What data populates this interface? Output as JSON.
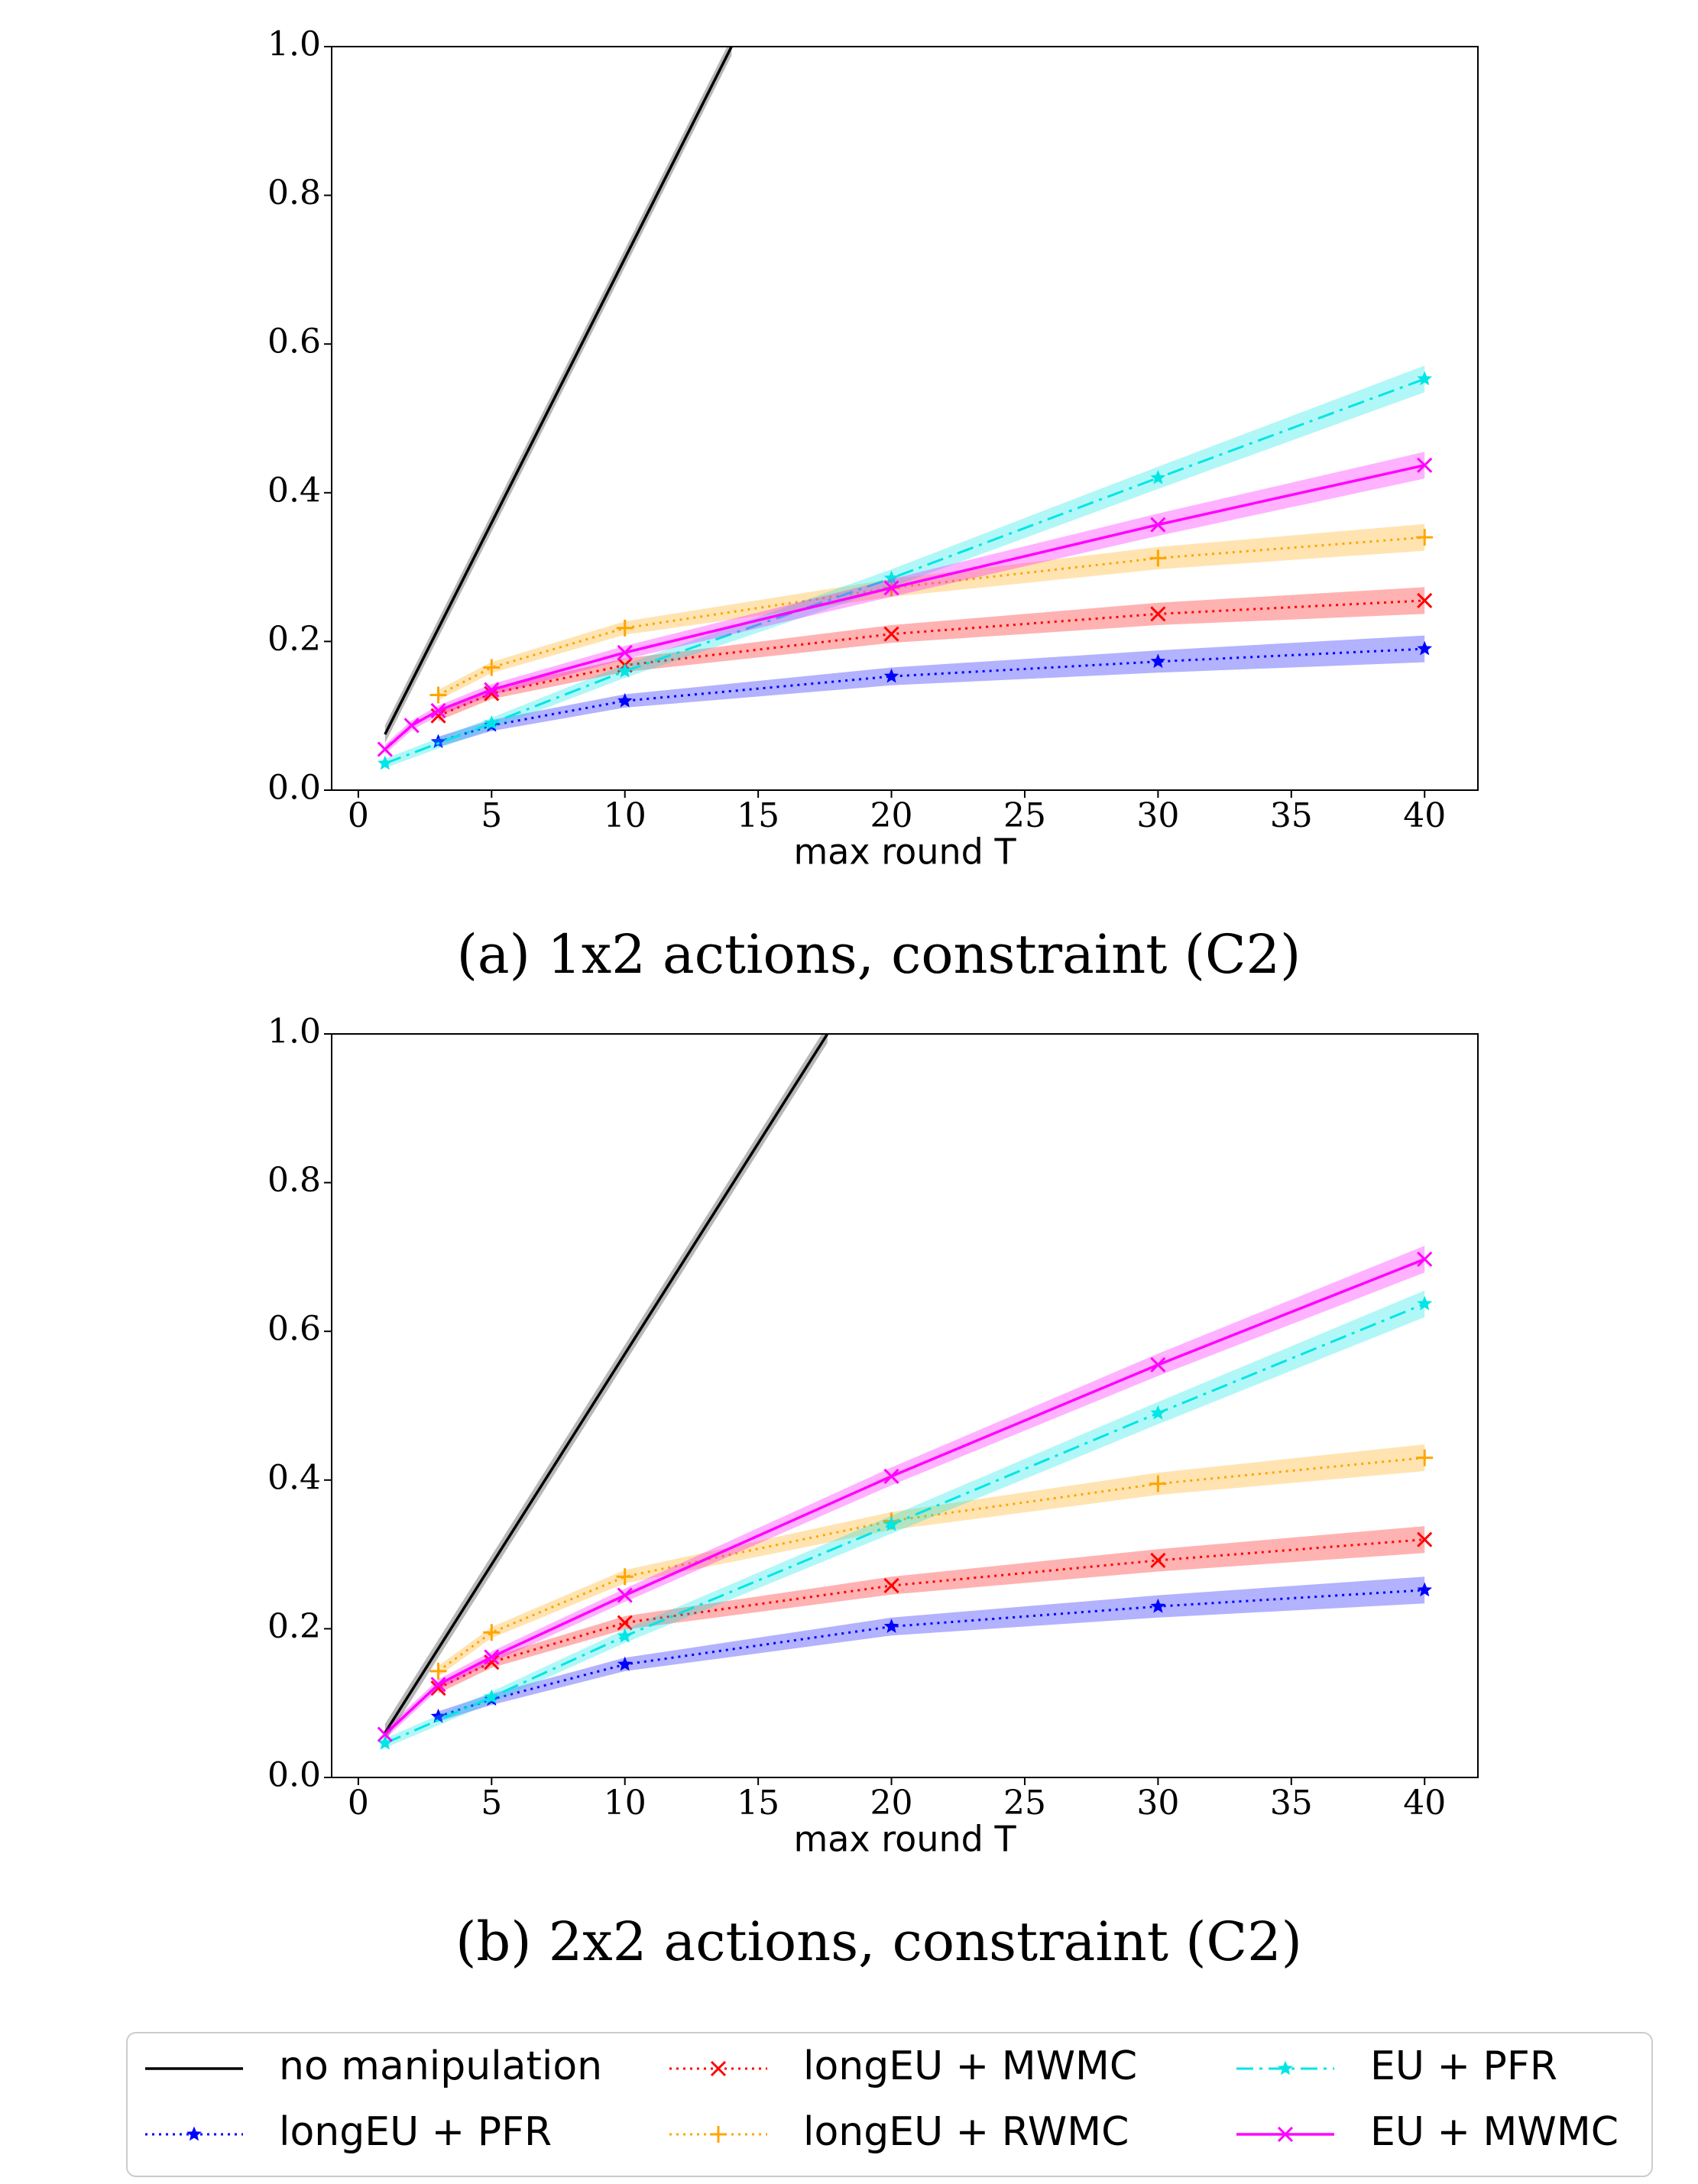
{
  "shared": {
    "xlabel": "max round T",
    "xticks": [
      0,
      5,
      10,
      15,
      20,
      25,
      30,
      35,
      40
    ],
    "yticks": [
      0.0,
      0.2,
      0.4,
      0.6,
      0.8,
      1.0
    ],
    "xlim": [
      -1,
      42
    ],
    "ylim": [
      0,
      1
    ]
  },
  "chart_data": [
    {
      "type": "line",
      "caption": "(a) 1x2 actions, constraint (C2)",
      "xlabel": "max round T",
      "xlim": [
        -1,
        42
      ],
      "ylim": [
        0,
        1
      ],
      "grid": false,
      "series": [
        {
          "key": "no_manipulation",
          "name": "no manipulation",
          "color": "#000000",
          "dash": "solid",
          "marker": "none",
          "x": [
            1,
            14
          ],
          "y": [
            0.075,
            1.0
          ]
        },
        {
          "key": "longEU_PFR",
          "name": "longEU + PFR",
          "color": "#0000ff",
          "dash": "dotted",
          "marker": "star",
          "x": [
            3,
            5,
            10,
            20,
            30,
            40
          ],
          "y": [
            0.065,
            0.087,
            0.12,
            0.153,
            0.173,
            0.19
          ]
        },
        {
          "key": "longEU_MWMC",
          "name": "longEU + MWMC",
          "color": "#ff0000",
          "dash": "dotted",
          "marker": "x",
          "x": [
            3,
            5,
            10,
            20,
            30,
            40
          ],
          "y": [
            0.1,
            0.13,
            0.168,
            0.21,
            0.237,
            0.255
          ]
        },
        {
          "key": "longEU_RWMC",
          "name": "longEU + RWMC",
          "color": "#ffa500",
          "dash": "dotted",
          "marker": "plus",
          "x": [
            3,
            5,
            10,
            20,
            30,
            40
          ],
          "y": [
            0.128,
            0.165,
            0.218,
            0.272,
            0.312,
            0.34
          ]
        },
        {
          "key": "EU_PFR",
          "name": "EU + PFR",
          "color": "#00e5e5",
          "dash": "dashdot",
          "marker": "star",
          "x": [
            1,
            5,
            10,
            20,
            30,
            40
          ],
          "y": [
            0.036,
            0.09,
            0.16,
            0.285,
            0.42,
            0.553
          ]
        },
        {
          "key": "EU_MWMC",
          "name": "EU + MWMC",
          "color": "#ff00ff",
          "dash": "solid",
          "marker": "x",
          "x": [
            1,
            2,
            3,
            5,
            10,
            20,
            30,
            40
          ],
          "y": [
            0.055,
            0.087,
            0.107,
            0.135,
            0.185,
            0.272,
            0.357,
            0.437
          ]
        }
      ]
    },
    {
      "type": "line",
      "caption": "(b) 2x2 actions, constraint (C2)",
      "xlabel": "max round T",
      "xlim": [
        -1,
        42
      ],
      "ylim": [
        0,
        1
      ],
      "grid": false,
      "series": [
        {
          "key": "no_manipulation",
          "name": "no manipulation",
          "color": "#000000",
          "dash": "solid",
          "marker": "none",
          "x": [
            1,
            17.6
          ],
          "y": [
            0.06,
            1.0
          ]
        },
        {
          "key": "longEU_PFR",
          "name": "longEU + PFR",
          "color": "#0000ff",
          "dash": "dotted",
          "marker": "star",
          "x": [
            3,
            5,
            10,
            20,
            30,
            40
          ],
          "y": [
            0.082,
            0.105,
            0.152,
            0.203,
            0.23,
            0.252
          ]
        },
        {
          "key": "longEU_MWMC",
          "name": "longEU + MWMC",
          "color": "#ff0000",
          "dash": "dotted",
          "marker": "x",
          "x": [
            3,
            5,
            10,
            20,
            30,
            40
          ],
          "y": [
            0.12,
            0.155,
            0.208,
            0.258,
            0.292,
            0.32
          ]
        },
        {
          "key": "longEU_RWMC",
          "name": "longEU + RWMC",
          "color": "#ffa500",
          "dash": "dotted",
          "marker": "plus",
          "x": [
            3,
            5,
            10,
            20,
            30,
            40
          ],
          "y": [
            0.143,
            0.195,
            0.27,
            0.345,
            0.395,
            0.43
          ]
        },
        {
          "key": "EU_PFR",
          "name": "EU + PFR",
          "color": "#00e5e5",
          "dash": "dashdot",
          "marker": "star",
          "x": [
            1,
            5,
            10,
            20,
            30,
            40
          ],
          "y": [
            0.046,
            0.108,
            0.19,
            0.34,
            0.49,
            0.637
          ]
        },
        {
          "key": "EU_MWMC",
          "name": "EU + MWMC",
          "color": "#ff00ff",
          "dash": "solid",
          "marker": "x",
          "x": [
            1,
            3,
            5,
            10,
            20,
            30,
            40
          ],
          "y": [
            0.058,
            0.125,
            0.162,
            0.245,
            0.405,
            0.555,
            0.697
          ]
        }
      ]
    }
  ],
  "legend": {
    "placement": "bottom",
    "items": [
      {
        "key": "no_manipulation",
        "label": "no manipulation"
      },
      {
        "key": "longEU_PFR",
        "label": "longEU + PFR"
      },
      {
        "key": "longEU_MWMC",
        "label": "longEU + MWMC"
      },
      {
        "key": "longEU_RWMC",
        "label": "longEU + RWMC"
      },
      {
        "key": "EU_PFR",
        "label": "EU + PFR"
      },
      {
        "key": "EU_MWMC",
        "label": "EU + MWMC"
      }
    ]
  }
}
